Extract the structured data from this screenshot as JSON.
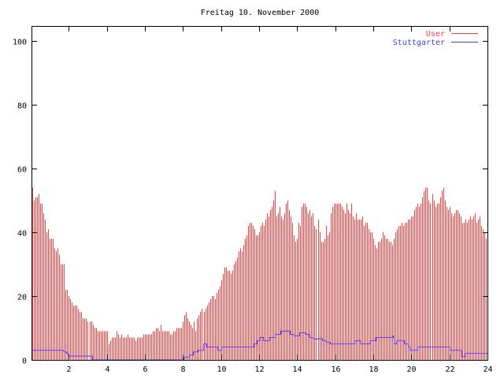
{
  "chart_data": {
    "type": "bar",
    "title": "Freitag 10. November 2000",
    "xlabel": "",
    "ylabel": "",
    "xlim": [
      0,
      24
    ],
    "ylim": [
      0,
      105
    ],
    "xticks": [
      2,
      4,
      6,
      8,
      10,
      12,
      14,
      16,
      18,
      20,
      22,
      24
    ],
    "yticks": [
      0,
      20,
      40,
      60,
      80,
      100
    ],
    "legend_position": "top-right",
    "colors": {
      "user": "#ff4040",
      "stuttgarter": "#4040ff",
      "axis": "#000000"
    },
    "series": [
      {
        "name": "User",
        "style": "impulses",
        "x_step_minutes": 5,
        "values": [
          54,
          50,
          51,
          51,
          52,
          49,
          49,
          46,
          44,
          40,
          41,
          38,
          38,
          38,
          35,
          34,
          35,
          33,
          30,
          30,
          30,
          22,
          22,
          20,
          19,
          18,
          17,
          17,
          17,
          16,
          15,
          15,
          13,
          13,
          13,
          12,
          12,
          12,
          11,
          10,
          10,
          9,
          9,
          9,
          9,
          9,
          9,
          9,
          5,
          6,
          7,
          7,
          7,
          9,
          8,
          7,
          8,
          7,
          7,
          7,
          8,
          7,
          7,
          7,
          7,
          6,
          7,
          7,
          7,
          7,
          8,
          8,
          8,
          8,
          8,
          8,
          9,
          9,
          10,
          10,
          9,
          11,
          9,
          9,
          9,
          9,
          9,
          8,
          8,
          9,
          9,
          10,
          10,
          10,
          10,
          12,
          14,
          15,
          13,
          12,
          11,
          10,
          12,
          9,
          13,
          14,
          15,
          16,
          15,
          16,
          17,
          18,
          19,
          20,
          20,
          19,
          21,
          22,
          23,
          25,
          27,
          29,
          29,
          28,
          28,
          27,
          28,
          30,
          31,
          32,
          34,
          35,
          34,
          36,
          38,
          39,
          42,
          43,
          43,
          42,
          41,
          39,
          39,
          40,
          42,
          43,
          42,
          44,
          46,
          45,
          47,
          48,
          50,
          53,
          45,
          46,
          48,
          45,
          44,
          46,
          49,
          50,
          47,
          45,
          43,
          39,
          37,
          38,
          43,
          42,
          48,
          49,
          49,
          48,
          46,
          47,
          45,
          46,
          42,
          41,
          44,
          40,
          37,
          37,
          38,
          42,
          39,
          40,
          46,
          48,
          49,
          49,
          49,
          49,
          49,
          48,
          47,
          46,
          49,
          47,
          46,
          49,
          45,
          44,
          46,
          44,
          44,
          44,
          45,
          42,
          43,
          43,
          41,
          40,
          40,
          38,
          36,
          35,
          37,
          37,
          38,
          40,
          39,
          38,
          38,
          37,
          37,
          36,
          38,
          40,
          41,
          42,
          42,
          43,
          42,
          43,
          43,
          44,
          44,
          45,
          45,
          47,
          48,
          49,
          48,
          49,
          51,
          53,
          54,
          54,
          50,
          49,
          52,
          50,
          48,
          49,
          49,
          51,
          53,
          54,
          50,
          48,
          47,
          48,
          46,
          45,
          46,
          47,
          47,
          46,
          45,
          43,
          43,
          44,
          43,
          44,
          45,
          44,
          45,
          46,
          43,
          44,
          45,
          42,
          41,
          40,
          38,
          38
        ]
      },
      {
        "name": "Stuttgarter",
        "style": "steps",
        "points": [
          [
            0,
            3
          ],
          [
            1.6,
            3
          ],
          [
            1.7,
            2.5
          ],
          [
            1.85,
            2
          ],
          [
            1.95,
            1.2
          ],
          [
            3.2,
            0
          ],
          [
            8.0,
            0.8
          ],
          [
            8.3,
            1.5
          ],
          [
            8.5,
            2.5
          ],
          [
            8.75,
            3
          ],
          [
            9.05,
            5
          ],
          [
            9.2,
            4
          ],
          [
            9.8,
            3
          ],
          [
            10.0,
            4
          ],
          [
            11.5,
            4
          ],
          [
            11.7,
            5
          ],
          [
            11.85,
            6
          ],
          [
            12.0,
            7
          ],
          [
            12.2,
            6
          ],
          [
            12.5,
            7
          ],
          [
            12.8,
            8
          ],
          [
            13.1,
            9
          ],
          [
            13.6,
            8
          ],
          [
            13.8,
            7.5
          ],
          [
            14.1,
            8.5
          ],
          [
            14.4,
            8
          ],
          [
            14.6,
            7
          ],
          [
            14.8,
            6.5
          ],
          [
            15.0,
            6.6
          ],
          [
            15.3,
            6
          ],
          [
            15.5,
            5.5
          ],
          [
            15.7,
            5
          ],
          [
            17.0,
            6
          ],
          [
            17.3,
            5
          ],
          [
            17.8,
            6
          ],
          [
            18.1,
            7
          ],
          [
            19.0,
            7.5
          ],
          [
            19.05,
            5
          ],
          [
            19.2,
            6
          ],
          [
            19.6,
            5
          ],
          [
            19.8,
            4
          ],
          [
            19.9,
            3
          ],
          [
            20.3,
            4
          ],
          [
            22.0,
            3
          ],
          [
            22.6,
            1
          ],
          [
            22.8,
            2
          ],
          [
            24,
            2
          ]
        ]
      }
    ]
  }
}
